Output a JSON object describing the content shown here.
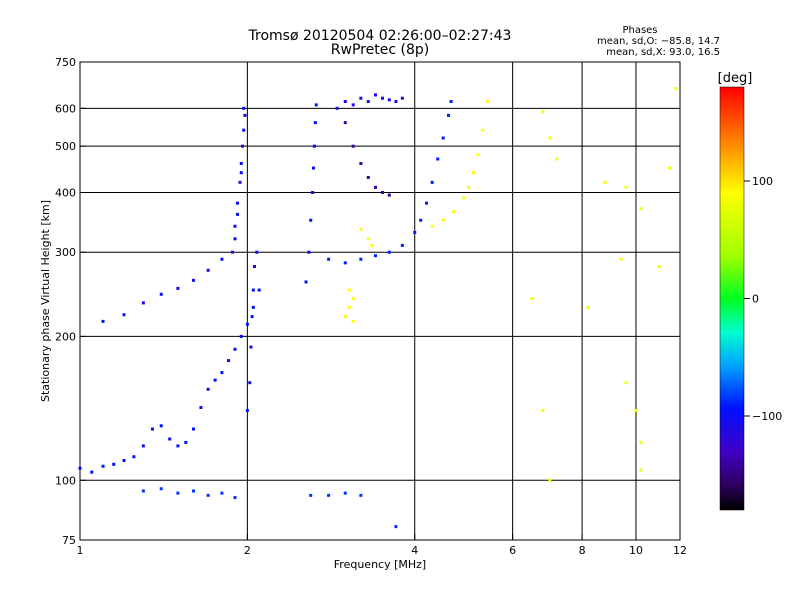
{
  "header": {
    "title": "Tromsø 20120504 02:26:00–02:27:43",
    "subtitle": "RwPretec (8p)"
  },
  "phases_box": {
    "heading": "Phases",
    "line_o": "mean, sd,O: −85.8, 14.7",
    "line_x": "mean, sd,X:  93.0, 16.5"
  },
  "colorbar": {
    "label": "[deg]",
    "ticks": [
      "100",
      "0",
      "−100"
    ],
    "tick_values": [
      100,
      0,
      -100
    ],
    "range": [
      -180,
      180
    ]
  },
  "chart_data": {
    "type": "scatter",
    "xlabel": "Frequency [MHz]",
    "ylabel": "Stationary phase Virtual Height [km]",
    "x_scale": "log",
    "y_scale": "log",
    "xlim": [
      1,
      12
    ],
    "ylim": [
      75,
      750
    ],
    "x_ticks": [
      1,
      2,
      4,
      6,
      8,
      10,
      12
    ],
    "x_tick_labels": [
      "1",
      "2",
      "4",
      "6",
      "8",
      "10",
      "12"
    ],
    "y_ticks": [
      75,
      100,
      200,
      300,
      400,
      500,
      600,
      750
    ],
    "y_tick_labels": [
      "75",
      "100",
      "200",
      "300",
      "400",
      "500",
      "600",
      "750"
    ],
    "grid": true,
    "grid_x": [
      2,
      4,
      6,
      8,
      10
    ],
    "grid_y": [
      100,
      200,
      300,
      400,
      500,
      600
    ],
    "colormap": "rainbow phase (black → purple → blue → cyan → green → yellow → red)",
    "traces": [
      {
        "name": "o-low-trace",
        "phase": -95,
        "points": [
          [
            1.0,
            106
          ],
          [
            1.05,
            104
          ],
          [
            1.1,
            107
          ],
          [
            1.15,
            108
          ],
          [
            1.2,
            110
          ],
          [
            1.25,
            112
          ],
          [
            1.3,
            118
          ],
          [
            1.35,
            128
          ],
          [
            1.4,
            130
          ],
          [
            1.45,
            122
          ],
          [
            1.5,
            118
          ],
          [
            1.55,
            120
          ],
          [
            1.6,
            128
          ],
          [
            1.65,
            142
          ],
          [
            1.7,
            155
          ],
          [
            1.75,
            162
          ],
          [
            1.8,
            168
          ],
          [
            1.85,
            178
          ],
          [
            1.9,
            188
          ],
          [
            1.95,
            200
          ],
          [
            2.0,
            212
          ],
          [
            2.05,
            230
          ],
          [
            2.1,
            250
          ]
        ]
      },
      {
        "name": "o-rise-trace",
        "phase": -100,
        "points": [
          [
            1.1,
            215
          ],
          [
            1.2,
            222
          ],
          [
            1.3,
            235
          ],
          [
            1.4,
            245
          ],
          [
            1.5,
            252
          ],
          [
            1.6,
            262
          ],
          [
            1.7,
            275
          ],
          [
            1.8,
            290
          ]
        ]
      },
      {
        "name": "o-1.9mhz-column",
        "phase": -100,
        "points": [
          [
            1.88,
            300
          ],
          [
            1.9,
            340
          ],
          [
            1.92,
            380
          ],
          [
            1.94,
            420
          ],
          [
            1.95,
            460
          ],
          [
            1.96,
            500
          ],
          [
            1.97,
            540
          ],
          [
            1.98,
            580
          ],
          [
            1.97,
            600
          ],
          [
            1.95,
            440
          ],
          [
            1.92,
            360
          ],
          [
            1.9,
            320
          ]
        ]
      },
      {
        "name": "o-2.0mhz-column",
        "phase": -100,
        "points": [
          [
            2.0,
            140
          ],
          [
            2.02,
            160
          ],
          [
            2.03,
            190
          ],
          [
            2.04,
            220
          ],
          [
            2.05,
            250
          ],
          [
            2.06,
            280
          ],
          [
            2.08,
            300
          ]
        ]
      },
      {
        "name": "o-2.6mhz-column",
        "phase": -95,
        "points": [
          [
            2.55,
            260
          ],
          [
            2.58,
            300
          ],
          [
            2.6,
            350
          ],
          [
            2.62,
            400
          ],
          [
            2.63,
            450
          ],
          [
            2.64,
            500
          ],
          [
            2.65,
            560
          ],
          [
            2.66,
            610
          ]
        ]
      },
      {
        "name": "o-f2-trace",
        "phase": -90,
        "points": [
          [
            2.8,
            290
          ],
          [
            3.0,
            285
          ],
          [
            3.2,
            290
          ],
          [
            3.4,
            295
          ],
          [
            3.6,
            300
          ],
          [
            3.8,
            310
          ],
          [
            4.0,
            330
          ],
          [
            4.1,
            350
          ],
          [
            4.2,
            380
          ],
          [
            4.3,
            420
          ],
          [
            4.4,
            470
          ],
          [
            4.5,
            520
          ],
          [
            4.6,
            580
          ],
          [
            4.65,
            620
          ]
        ]
      },
      {
        "name": "o-top-band",
        "phase": -105,
        "points": [
          [
            2.9,
            600
          ],
          [
            3.0,
            620
          ],
          [
            3.1,
            610
          ],
          [
            3.2,
            630
          ],
          [
            3.3,
            620
          ],
          [
            3.4,
            640
          ],
          [
            3.5,
            630
          ],
          [
            3.6,
            625
          ],
          [
            3.7,
            620
          ],
          [
            3.8,
            630
          ]
        ]
      },
      {
        "name": "o-fringe-trace",
        "phase": -140,
        "points": [
          [
            3.0,
            560
          ],
          [
            3.1,
            500
          ],
          [
            3.2,
            460
          ],
          [
            3.3,
            430
          ],
          [
            3.4,
            410
          ],
          [
            3.5,
            400
          ],
          [
            3.6,
            395
          ]
        ]
      },
      {
        "name": "x-trace",
        "phase": 90,
        "points": [
          [
            4.3,
            340
          ],
          [
            4.5,
            350
          ],
          [
            4.7,
            365
          ],
          [
            4.9,
            390
          ],
          [
            5.0,
            410
          ],
          [
            5.1,
            440
          ],
          [
            5.2,
            480
          ],
          [
            5.3,
            540
          ],
          [
            5.4,
            620
          ]
        ]
      },
      {
        "name": "x-3mhz-cluster",
        "phase": 90,
        "points": [
          [
            3.0,
            220
          ],
          [
            3.05,
            230
          ],
          [
            3.1,
            240
          ],
          [
            3.05,
            250
          ],
          [
            3.1,
            215
          ],
          [
            3.2,
            335
          ],
          [
            3.3,
            320
          ],
          [
            3.35,
            310
          ]
        ]
      },
      {
        "name": "bottom-points",
        "phase": -85,
        "points": [
          [
            1.3,
            95
          ],
          [
            1.4,
            96
          ],
          [
            1.5,
            94
          ],
          [
            1.6,
            95
          ],
          [
            1.7,
            93
          ],
          [
            1.8,
            94
          ],
          [
            1.9,
            92
          ],
          [
            2.6,
            93
          ],
          [
            2.8,
            93
          ],
          [
            3.0,
            94
          ],
          [
            3.2,
            93
          ],
          [
            3.7,
            80
          ]
        ]
      },
      {
        "name": "scattered-points",
        "phase": 85,
        "points": [
          [
            6.8,
            590
          ],
          [
            7.0,
            520
          ],
          [
            7.2,
            470
          ],
          [
            8.8,
            420
          ],
          [
            9.6,
            410
          ],
          [
            10.2,
            370
          ],
          [
            6.5,
            240
          ],
          [
            8.2,
            230
          ],
          [
            9.6,
            160
          ],
          [
            10.0,
            140
          ],
          [
            10.2,
            120
          ],
          [
            10.2,
            105
          ],
          [
            7.0,
            100
          ],
          [
            6.8,
            140
          ],
          [
            9.4,
            290
          ],
          [
            11.0,
            280
          ],
          [
            11.5,
            450
          ],
          [
            11.8,
            660
          ]
        ]
      }
    ]
  }
}
